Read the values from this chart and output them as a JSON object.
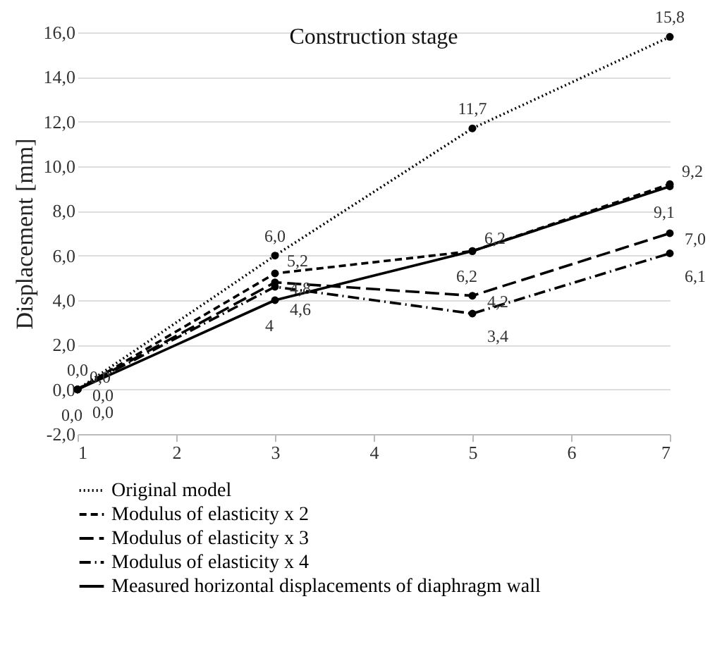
{
  "chart_data": {
    "type": "line",
    "title": "Construction stage",
    "ylabel": "Displacement [mm]",
    "x": [
      1,
      3,
      5,
      7
    ],
    "series": [
      {
        "name": "Original model",
        "color": "#000000",
        "line_style": "dotted",
        "values": [
          0,
          6.0,
          11.7,
          15.8
        ],
        "value_labels": [
          "0,0",
          "6,0",
          "11,7",
          "15,8"
        ]
      },
      {
        "name": "Modulus of elasticity x 2",
        "color": "#000000",
        "line_style": "dashed",
        "values": [
          0,
          5.2,
          6.2,
          9.2
        ],
        "value_labels": [
          "0,0",
          "5,2",
          "6,2",
          "9,2"
        ]
      },
      {
        "name": "Modulus of elasticity x 3",
        "color": "#000000",
        "line_style": "longdash",
        "values": [
          0,
          4.8,
          4.2,
          7.0
        ],
        "value_labels": [
          "0,0",
          "4,8",
          "4,2",
          "7,0"
        ]
      },
      {
        "name": "Modulus of elasticity x 4",
        "color": "#000000",
        "line_style": "dashdot",
        "values": [
          0,
          4.6,
          3.4,
          6.1
        ],
        "value_labels": [
          "0,0",
          "4,6",
          "3,4",
          "6,1"
        ]
      },
      {
        "name": "Measured horizontal displacements of diaphragm wall",
        "color": "#000000",
        "line_style": "solid",
        "values": [
          0,
          4,
          6.2,
          9.1
        ],
        "value_labels": [
          "0,0",
          "4",
          "6,2",
          "9,1"
        ]
      }
    ],
    "xlim": [
      1,
      7
    ],
    "xticks": [
      {
        "value": 1,
        "label": "1"
      },
      {
        "value": 2,
        "label": "2"
      },
      {
        "value": 3,
        "label": "3"
      },
      {
        "value": 4,
        "label": "4"
      },
      {
        "value": 5,
        "label": "5"
      },
      {
        "value": 6,
        "label": "6"
      },
      {
        "value": 7,
        "label": "7"
      }
    ],
    "ylim": [
      -2,
      16
    ],
    "yticks": [
      {
        "value": -2,
        "label": "-2,0"
      },
      {
        "value": 0,
        "label": "0,0"
      },
      {
        "value": 2,
        "label": "2,0"
      },
      {
        "value": 4,
        "label": "4,0"
      },
      {
        "value": 6,
        "label": "6,0"
      },
      {
        "value": 8,
        "label": "8,0"
      },
      {
        "value": 10,
        "label": "10,0"
      },
      {
        "value": 12,
        "label": "12,0"
      },
      {
        "value": 14,
        "label": "14,0"
      },
      {
        "value": 16,
        "label": "16,0"
      }
    ],
    "grid": "y",
    "legend": "bottom",
    "marker": "circle"
  }
}
